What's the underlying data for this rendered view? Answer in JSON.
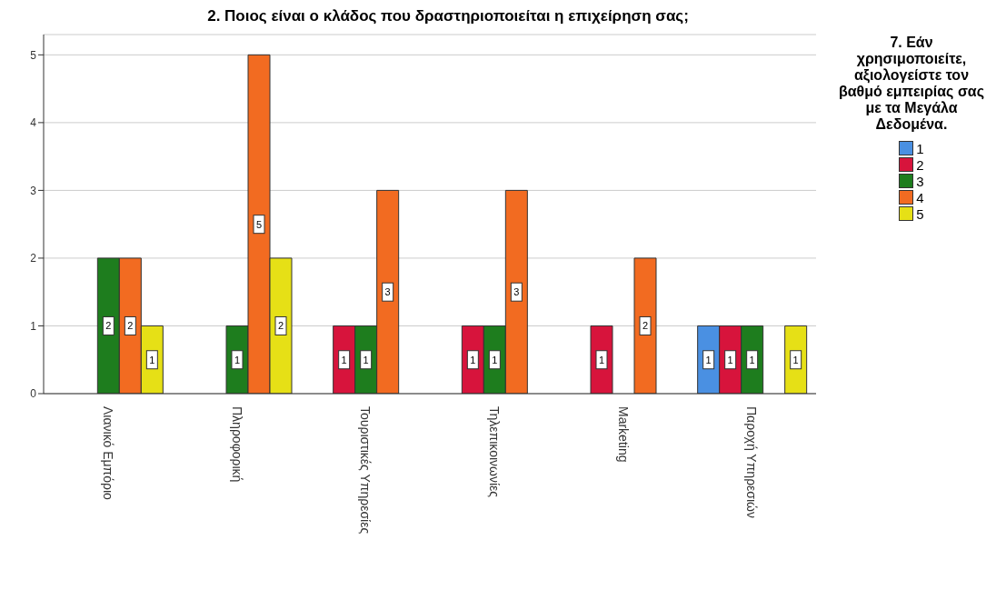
{
  "chart_data": {
    "type": "bar",
    "title": "2. Ποιος είναι ο κλάδος που δραστηριοποιείται η επιχείρηση σας;",
    "categories": [
      "Λιανικό Εμπόριο",
      "Πληροφορική",
      "Τουριστικές Υπηρεσίες",
      "Τηλεπικοινωνίες",
      "Marketing",
      "Παροχή Υπηρεσιών"
    ],
    "series": [
      {
        "name": "1",
        "color": "#4a90e2",
        "values": [
          null,
          null,
          null,
          null,
          null,
          1
        ]
      },
      {
        "name": "2",
        "color": "#d7143c",
        "values": [
          null,
          null,
          1,
          1,
          1,
          1
        ]
      },
      {
        "name": "3",
        "color": "#1e7d1e",
        "values": [
          2,
          1,
          1,
          1,
          null,
          1
        ]
      },
      {
        "name": "4",
        "color": "#f26b21",
        "values": [
          2,
          5,
          3,
          3,
          2,
          null
        ]
      },
      {
        "name": "5",
        "color": "#e6e016",
        "values": [
          1,
          2,
          null,
          null,
          null,
          1
        ]
      }
    ],
    "legend_title": "7. Εάν χρησιμοποιείτε, αξιολογείστε τον βαθμό εμπειρίας σας με τα Μεγάλα Δεδομένα.",
    "legend": "top right",
    "ylim": [
      0,
      5.3
    ],
    "yticks": [
      0,
      1,
      2,
      3,
      4,
      5
    ],
    "grid": "y",
    "data_labels": true
  }
}
